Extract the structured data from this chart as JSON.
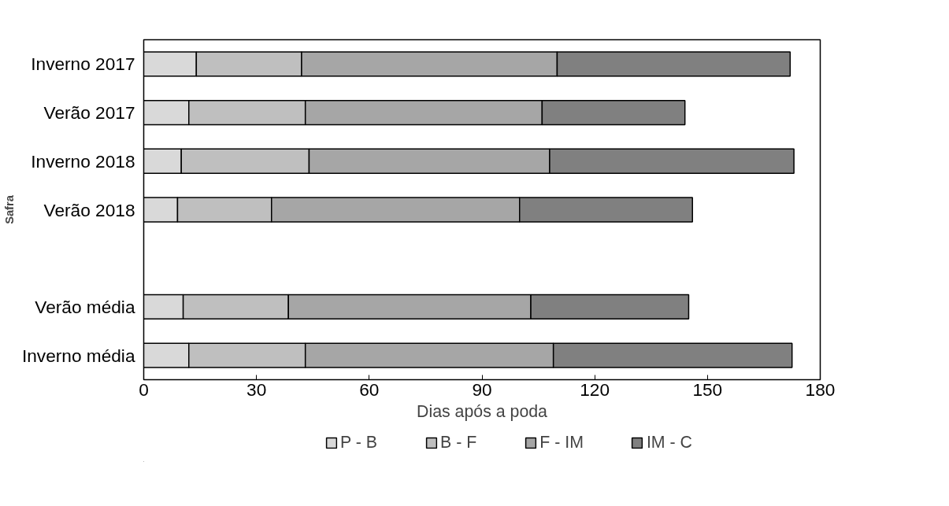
{
  "chart_data": {
    "type": "bar",
    "orientation": "horizontal",
    "stacked": true,
    "xlabel": "Dias após a poda",
    "ylabel": "Safra",
    "categories": [
      "Inverno 2017",
      "Verão 2017",
      "Inverno 2018",
      "Verão 2018",
      null,
      "Verão média",
      "Inverno média"
    ],
    "series": [
      {
        "name": "P - B",
        "color": "#d9d9d9",
        "values": [
          14,
          12,
          10,
          9,
          null,
          10.5,
          12
        ]
      },
      {
        "name": "B - F",
        "color": "#bfbfbf",
        "values": [
          28,
          31,
          34,
          25,
          null,
          28,
          31
        ]
      },
      {
        "name": "F - IM",
        "color": "#a6a6a6",
        "values": [
          68,
          63,
          64,
          66,
          null,
          64.5,
          66
        ]
      },
      {
        "name": "IM - C",
        "color": "#808080",
        "values": [
          62,
          38,
          65,
          46,
          null,
          42,
          63.5
        ]
      }
    ],
    "xlim": [
      0,
      180
    ],
    "xticks": [
      0,
      30,
      60,
      90,
      120,
      150,
      180
    ],
    "grid": false,
    "legend": "bottom"
  }
}
